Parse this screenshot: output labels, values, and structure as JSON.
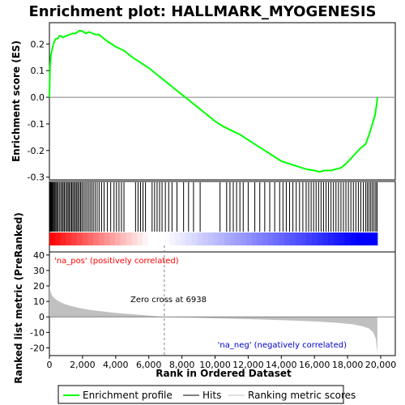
{
  "chart_data": {
    "type": "line",
    "title": "Enrichment plot: HALLMARK_MYOGENESIS",
    "colors": {
      "es_line": "#00ff00",
      "hits": "#000000",
      "metric_fill": "#c0c0c0",
      "pos_label": "#ff0000",
      "neg_label": "#0000cc",
      "heat_pos": "#ff0000",
      "heat_neg": "#0000ff"
    },
    "es_panel": {
      "ylabel": "Enrichment score (ES)",
      "yticks": [
        "0.2",
        "0.1",
        "0.0",
        "-0.1",
        "-0.2",
        "-0.3"
      ],
      "ylim": [
        -0.31,
        0.28
      ],
      "xlim": [
        0,
        20000
      ],
      "series": [
        {
          "name": "Enrichment profile",
          "x": [
            0,
            40,
            100,
            200,
            300,
            400,
            500,
            600,
            700,
            800,
            1000,
            1200,
            1400,
            1600,
            1800,
            2000,
            2200,
            2400,
            2600,
            2800,
            3000,
            3200,
            3500,
            4000,
            4500,
            5000,
            5500,
            6000,
            6500,
            7000,
            7500,
            8000,
            8500,
            9000,
            9500,
            10000,
            10500,
            11000,
            11500,
            12000,
            12500,
            13000,
            13500,
            14000,
            14500,
            15000,
            15500,
            16000,
            16300,
            16600,
            17000,
            17300,
            17600,
            17900,
            18200,
            18500,
            18800,
            19100,
            19300,
            19500,
            19650,
            19750,
            19800
          ],
          "y": [
            0.0,
            0.12,
            0.16,
            0.19,
            0.21,
            0.22,
            0.22,
            0.23,
            0.23,
            0.225,
            0.23,
            0.235,
            0.24,
            0.24,
            0.25,
            0.248,
            0.24,
            0.245,
            0.24,
            0.235,
            0.235,
            0.225,
            0.21,
            0.19,
            0.175,
            0.15,
            0.13,
            0.11,
            0.085,
            0.06,
            0.035,
            0.01,
            -0.015,
            -0.04,
            -0.065,
            -0.09,
            -0.11,
            -0.125,
            -0.14,
            -0.16,
            -0.18,
            -0.2,
            -0.22,
            -0.24,
            -0.25,
            -0.26,
            -0.27,
            -0.275,
            -0.28,
            -0.275,
            -0.275,
            -0.27,
            -0.265,
            -0.25,
            -0.23,
            -0.21,
            -0.19,
            -0.175,
            -0.14,
            -0.1,
            -0.07,
            -0.03,
            0.0
          ]
        }
      ]
    },
    "hits_panel": {
      "hit_positions": [
        20,
        60,
        100,
        140,
        180,
        230,
        280,
        330,
        390,
        450,
        520,
        600,
        680,
        760,
        830,
        900,
        980,
        1060,
        1130,
        1200,
        1280,
        1350,
        1420,
        1500,
        1570,
        1650,
        1720,
        1800,
        1880,
        1960,
        2050,
        2150,
        2250,
        2350,
        2450,
        2550,
        2650,
        2760,
        2880,
        3000,
        3150,
        3300,
        3500,
        3700,
        3900,
        4050,
        4200,
        4350,
        4500,
        5200,
        5350,
        5500,
        5650,
        5800,
        6200,
        6350,
        6500,
        6650,
        6800,
        7000,
        7200,
        7400,
        7700,
        8100,
        8400,
        8700,
        9100,
        10300,
        10700,
        10900,
        11100,
        11300,
        11500,
        11700,
        12000,
        12400,
        12700,
        13000,
        13300,
        13600,
        13900,
        14100,
        14300,
        14500,
        14700,
        14900,
        15100,
        15300,
        15500,
        15650,
        15800,
        15950,
        16100,
        16250,
        16400,
        16550,
        16700,
        16850,
        17000,
        17150,
        17300,
        17450,
        17600,
        17750,
        17900,
        18050,
        18200,
        18350,
        18500,
        18650,
        18800,
        18950,
        19100,
        19200,
        19300,
        19400,
        19500,
        19600,
        19700,
        19780
      ]
    },
    "metric_panel": {
      "ylabel": "Ranked list metric (PreRanked)",
      "xlabel": "Rank in Ordered Dataset",
      "yticks": [
        "40",
        "30",
        "20",
        "10",
        "0",
        "-10",
        "-20"
      ],
      "xticks": [
        "0",
        "2,000",
        "4,000",
        "6,000",
        "8,000",
        "10,000",
        "12,000",
        "14,000",
        "16,000",
        "18,000",
        "20,000"
      ],
      "ylim": [
        -25,
        42
      ],
      "xlim": [
        0,
        20000
      ],
      "zero_cross": 6938,
      "zero_cross_label": "Zero cross at 6938",
      "pos_label": "'na_pos' (positively correlated)",
      "neg_label": "'na_neg' (negatively correlated)",
      "curve": {
        "x": [
          0,
          50,
          150,
          300,
          500,
          800,
          1200,
          1700,
          2300,
          3000,
          3800,
          4600,
          5500,
          6300,
          6938,
          8000,
          9500,
          11000,
          12500,
          14000,
          15500,
          16500,
          17500,
          18300,
          18900,
          19300,
          19550,
          19700,
          19800
        ],
        "y": [
          21,
          17,
          14,
          12,
          10.5,
          8.8,
          7.3,
          6.0,
          4.8,
          3.8,
          2.8,
          2.0,
          1.3,
          0.6,
          0.0,
          -0.4,
          -0.8,
          -1.2,
          -1.6,
          -2.1,
          -2.7,
          -3.2,
          -3.9,
          -4.8,
          -6.0,
          -7.5,
          -10,
          -14,
          -23
        ]
      }
    },
    "legend": {
      "items": [
        {
          "label": "Enrichment profile"
        },
        {
          "label": "Hits"
        },
        {
          "label": "Ranking metric scores"
        }
      ]
    }
  }
}
